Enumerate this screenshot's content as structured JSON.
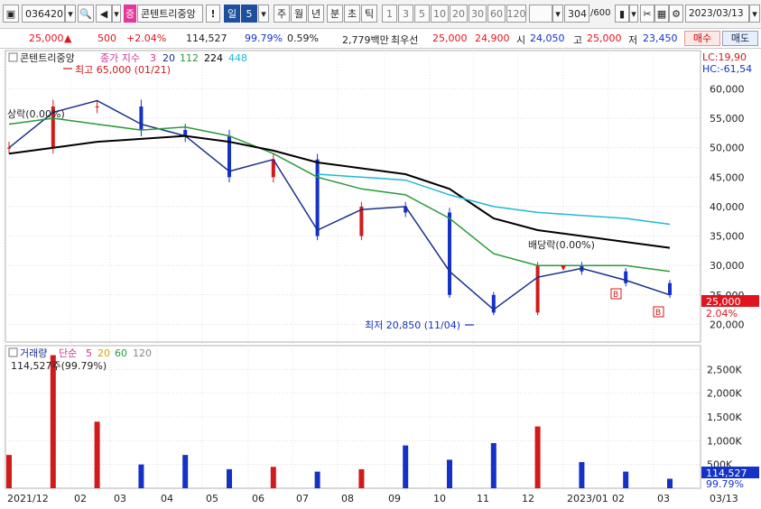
{
  "toolbar": {
    "code": "036420",
    "name": "콘텐트리중앙",
    "exclaim": "!",
    "periods": [
      "일",
      "5",
      "주",
      "월",
      "년",
      "분",
      "초",
      "틱"
    ],
    "minute_options": [
      "1",
      "3",
      "5",
      "10",
      "20",
      "30",
      "60",
      "120"
    ],
    "count": "304",
    "count_total": "/600",
    "date": "2023/03/13",
    "colors": {
      "selected": "#1d4f9c"
    }
  },
  "quote": {
    "price": "25,000",
    "arrow": "▲",
    "change": "500",
    "change_pct": "+2.04%",
    "volume": "114,527",
    "vol_ratio": "99.79%",
    "turnover": "0.59%",
    "amount": "2,779백만",
    "best_label": "최우선",
    "best_ask": "25,000",
    "best_bid": "24,900",
    "open_label": "시",
    "open": "24,050",
    "high_label": "고",
    "high": "25,000",
    "low_label": "저",
    "low": "23,450",
    "buy_label": "매수",
    "sell_label": "매도"
  },
  "price_panel": {
    "title": "콘텐트리중앙",
    "legend_label": "종가 지수",
    "ma": [
      {
        "period": "3",
        "color": "#cc3399"
      },
      {
        "period": "20",
        "color": "#1a2f8a"
      },
      {
        "period": "112",
        "color": "#2a9a3a"
      },
      {
        "period": "224",
        "color": "#000000"
      },
      {
        "period": "448",
        "color": "#20b8d8"
      }
    ],
    "lc": "LC:19,90",
    "hc": "HC:-61,54",
    "annot_high": "최고 65,000 (01/21)",
    "annot_low": "최저 20,850 (11/04)",
    "annot_left": "상락(0.00%)",
    "annot_right": "배당락(0.00%)",
    "badge_b": "B",
    "last_price_tag": "25,000",
    "last_pct_tag": "2.04%"
  },
  "volume_panel": {
    "title": "거래량",
    "legend_label": "단순",
    "ma": [
      {
        "period": "5",
        "color": "#cc3399"
      },
      {
        "period": "20",
        "color": "#d9a300"
      },
      {
        "period": "60",
        "color": "#2a9a3a"
      },
      {
        "period": "120",
        "color": "#888888"
      }
    ],
    "subtitle": "114,527주(99.79%)",
    "last_vol_tag": "114,527",
    "last_pct_tag": "99.79%"
  },
  "chart_data": [
    {
      "type": "line",
      "title": "콘텐트리중앙",
      "x": [
        "2021/12",
        "2022/01",
        "2022/02",
        "2022/03",
        "2022/04",
        "2022/05",
        "2022/06",
        "2022/07",
        "2022/08",
        "2022/09",
        "2022/10",
        "2022/11",
        "2022/12",
        "2023/01",
        "2023/02",
        "2023/03"
      ],
      "x_tick_labels": [
        "2021/12",
        "02",
        "03",
        "04",
        "05",
        "06",
        "07",
        "08",
        "09",
        "10",
        "11",
        "12",
        "2023/01",
        "02",
        "03",
        "03/13"
      ],
      "y_ticks": [
        20000,
        25000,
        30000,
        35000,
        40000,
        45000,
        50000,
        55000,
        60000
      ],
      "y_tick_labels": [
        "20,000",
        "25,000",
        "30,000",
        "35,000",
        "40,000",
        "45,000",
        "50,000",
        "55,000",
        "60,000"
      ],
      "ylim": [
        17000,
        66500
      ],
      "series": [
        {
          "name": "종가",
          "color": "#d11a1a",
          "values": [
            50000,
            57000,
            57000,
            53000,
            52000,
            45000,
            48000,
            35000,
            40000,
            39000,
            25000,
            22000,
            30000,
            29000,
            27000,
            25000
          ]
        },
        {
          "name": "20",
          "color": "#1a2f8a",
          "values": [
            50000,
            56000,
            58000,
            54000,
            52000,
            46000,
            48000,
            36000,
            39500,
            40000,
            29000,
            22500,
            28000,
            29500,
            27500,
            25000
          ]
        },
        {
          "name": "112",
          "color": "#2a9a3a",
          "values": [
            54000,
            55000,
            54000,
            53000,
            53500,
            52000,
            49000,
            45000,
            43000,
            42000,
            38000,
            32000,
            30000,
            30000,
            30000,
            29000
          ]
        },
        {
          "name": "224",
          "color": "#000000",
          "values": [
            49000,
            50000,
            51000,
            51500,
            52000,
            51000,
            49500,
            47500,
            46500,
            45500,
            43000,
            38000,
            36000,
            35000,
            34000,
            33000
          ]
        },
        {
          "name": "448",
          "color": "#20b8d8",
          "values": [
            null,
            null,
            null,
            null,
            null,
            null,
            null,
            45500,
            45000,
            44500,
            42000,
            40000,
            39000,
            38500,
            38000,
            37000
          ]
        }
      ]
    },
    {
      "type": "bar",
      "title": "거래량",
      "categories": [
        "2021/12",
        "2022/01",
        "2022/02",
        "2022/03",
        "2022/04",
        "2022/05",
        "2022/06",
        "2022/07",
        "2022/08",
        "2022/09",
        "2022/10",
        "2022/11",
        "2022/12",
        "2023/01",
        "2023/02",
        "2023/03"
      ],
      "y_ticks": [
        500000,
        1000000,
        1500000,
        2000000,
        2500000
      ],
      "y_tick_labels": [
        "500K",
        "1,000K",
        "1,500K",
        "2,000K",
        "2,500K"
      ],
      "ylim": [
        0,
        3000000
      ],
      "series": [
        {
          "name": "거래량",
          "values": [
            700000,
            2800000,
            1400000,
            500000,
            700000,
            400000,
            450000,
            350000,
            400000,
            900000,
            600000,
            950000,
            1300000,
            550000,
            350000,
            200000
          ]
        }
      ]
    }
  ]
}
